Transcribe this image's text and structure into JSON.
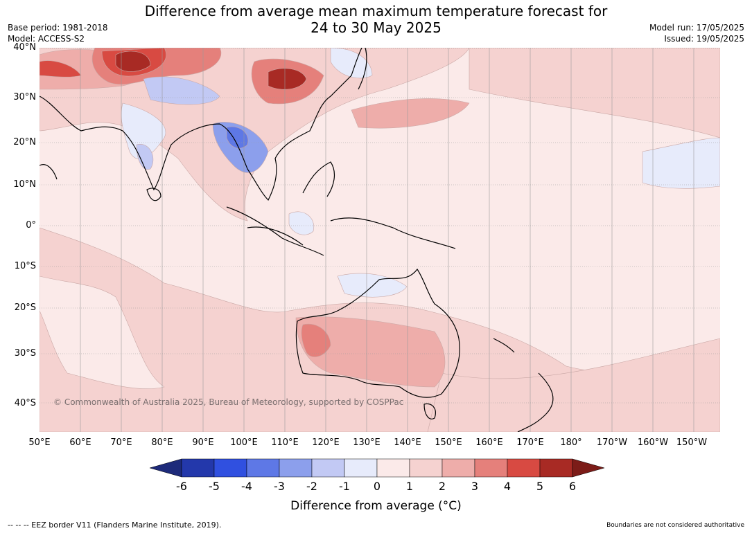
{
  "title": {
    "line1": "Difference from average mean maximum temperature forecast for",
    "line2": "24 to 30 May 2025"
  },
  "meta": {
    "base_period": "Base period: 1981-2018",
    "model": "Model: ACCESS-S2",
    "model_run": "Model run: 17/05/2025",
    "issued": "Issued: 19/05/2025"
  },
  "map": {
    "lat_labels": [
      "40°N",
      "30°N",
      "20°N",
      "10°N",
      "0°",
      "10°S",
      "20°S",
      "30°S",
      "40°S"
    ],
    "lon_labels": [
      "50°E",
      "60°E",
      "70°E",
      "80°E",
      "90°E",
      "100°E",
      "110°E",
      "120°E",
      "130°E",
      "140°E",
      "150°E",
      "160°E",
      "170°E",
      "180°",
      "170°W",
      "160°W",
      "150°W"
    ],
    "copyright": "© Commonwealth of Australia 2025, Bureau of Meteorology, supported by COSPPac"
  },
  "colorbar": {
    "ticks": [
      "-6",
      "-5",
      "-4",
      "-3",
      "-2",
      "-1",
      "0",
      "1",
      "2",
      "3",
      "4",
      "5",
      "6"
    ],
    "label": "Difference from average (°C)",
    "colors": [
      "#1d2a7a",
      "#2338ab",
      "#3050e0",
      "#5e78e6",
      "#8c9fec",
      "#c2c9f4",
      "#e7ebfb",
      "#fbeae9",
      "#f5d2d0",
      "#eeadaa",
      "#e5807b",
      "#d84a42",
      "#a82a24",
      "#7c1c18"
    ]
  },
  "footer": {
    "eez_note": "--  --  -- EEZ border V11 (Flanders Marine Institute, 2019).",
    "boundaries": "Boundaries are not considered authoritative"
  }
}
